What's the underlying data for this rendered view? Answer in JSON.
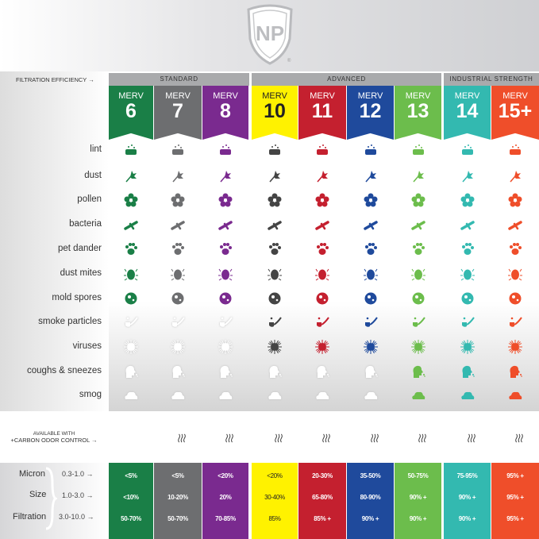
{
  "brand": {
    "logo_text": "NP",
    "logo_mark": "®"
  },
  "header": {
    "filtration_efficiency_label": "FILTRATION EFFICIENCY →",
    "groups": [
      {
        "label": "STANDARD"
      },
      {
        "label": "ADVANCED"
      },
      {
        "label": "INDUSTRIAL STRENGTH"
      }
    ]
  },
  "columns": [
    {
      "merv": "MERV",
      "rating": "6",
      "color": "#1a7f47",
      "icon_color": "#1a7f47",
      "text_color": "#ffffff"
    },
    {
      "merv": "MERV",
      "rating": "7",
      "color": "#6d6e70",
      "icon_color": "#6d6e70",
      "text_color": "#ffffff"
    },
    {
      "merv": "MERV",
      "rating": "8",
      "color": "#7a2a8f",
      "icon_color": "#7a2a8f",
      "text_color": "#ffffff"
    },
    {
      "merv": "MERV",
      "rating": "10",
      "color": "#fff200",
      "icon_color": "#444444",
      "text_color": "#222222"
    },
    {
      "merv": "MERV",
      "rating": "11",
      "color": "#c4202f",
      "icon_color": "#c4202f",
      "text_color": "#ffffff"
    },
    {
      "merv": "MERV",
      "rating": "12",
      "color": "#1f4a9c",
      "icon_color": "#1f4a9c",
      "text_color": "#ffffff"
    },
    {
      "merv": "MERV",
      "rating": "13",
      "color": "#6cbd4c",
      "icon_color": "#6cbd4c",
      "text_color": "#ffffff"
    },
    {
      "merv": "MERV",
      "rating": "14",
      "color": "#33b9b0",
      "icon_color": "#33b9b0",
      "text_color": "#ffffff"
    },
    {
      "merv": "MERV",
      "rating": "15+",
      "color": "#ef4e2a",
      "icon_color": "#ef4e2a",
      "text_color": "#ffffff"
    }
  ],
  "contaminants": [
    {
      "label": "lint",
      "icon": "lint-icon",
      "filtered": [
        1,
        1,
        1,
        1,
        1,
        1,
        1,
        1,
        1
      ]
    },
    {
      "label": "dust",
      "icon": "feather-duster-icon",
      "filtered": [
        1,
        1,
        1,
        1,
        1,
        1,
        1,
        1,
        1
      ]
    },
    {
      "label": "pollen",
      "icon": "flower-icon",
      "filtered": [
        1,
        1,
        1,
        1,
        1,
        1,
        1,
        1,
        1
      ]
    },
    {
      "label": "bacteria",
      "icon": "bacteria-icon",
      "filtered": [
        1,
        1,
        1,
        1,
        1,
        1,
        1,
        1,
        1
      ]
    },
    {
      "label": "pet dander",
      "icon": "paw-icon",
      "filtered": [
        1,
        1,
        1,
        1,
        1,
        1,
        1,
        1,
        1
      ]
    },
    {
      "label": "dust mites",
      "icon": "mite-icon",
      "filtered": [
        1,
        1,
        1,
        1,
        1,
        1,
        1,
        1,
        1
      ]
    },
    {
      "label": "mold spores",
      "icon": "spore-icon",
      "filtered": [
        1,
        1,
        1,
        1,
        1,
        1,
        1,
        1,
        1
      ]
    },
    {
      "label": "smoke particles",
      "icon": "pipe-icon",
      "filtered": [
        0,
        0,
        0,
        1,
        1,
        1,
        1,
        1,
        1
      ]
    },
    {
      "label": "viruses",
      "icon": "virus-icon",
      "filtered": [
        0,
        0,
        0,
        1,
        1,
        1,
        1,
        1,
        1
      ]
    },
    {
      "label": "coughs & sneezes",
      "icon": "sneeze-head-icon",
      "filtered": [
        0,
        0,
        0,
        0,
        0,
        0,
        1,
        1,
        1
      ]
    },
    {
      "label": "smog",
      "icon": "cloud-icon",
      "filtered": [
        0,
        0,
        0,
        0,
        0,
        0,
        1,
        1,
        1
      ]
    }
  ],
  "carbon": {
    "line1": "AVAILABLE WITH",
    "line2": "+CARBON ODOR CONTROL →",
    "available": [
      0,
      1,
      1,
      1,
      1,
      1,
      1,
      1,
      1
    ],
    "icon": "steam-icon"
  },
  "micron_table": {
    "left_labels": [
      "Micron",
      "Size",
      "Filtration"
    ],
    "ranges": [
      "0.3-1.0 →",
      "1.0-3.0 →",
      "3.0-10.0 →"
    ],
    "values": [
      [
        "<5%",
        "<10%",
        "50-70%"
      ],
      [
        "<5%",
        "10-20%",
        "50-70%"
      ],
      [
        "<20%",
        "20%",
        "70-85%"
      ],
      [
        "<20%",
        "30-40%",
        "85%"
      ],
      [
        "20-30%",
        "65-80%",
        "85% +"
      ],
      [
        "35-50%",
        "80-90%",
        "90% +"
      ],
      [
        "50-75%",
        "90% +",
        "90% +"
      ],
      [
        "75-95%",
        "90% +",
        "90% +"
      ],
      [
        "95% +",
        "95% +",
        "95% +"
      ]
    ]
  }
}
